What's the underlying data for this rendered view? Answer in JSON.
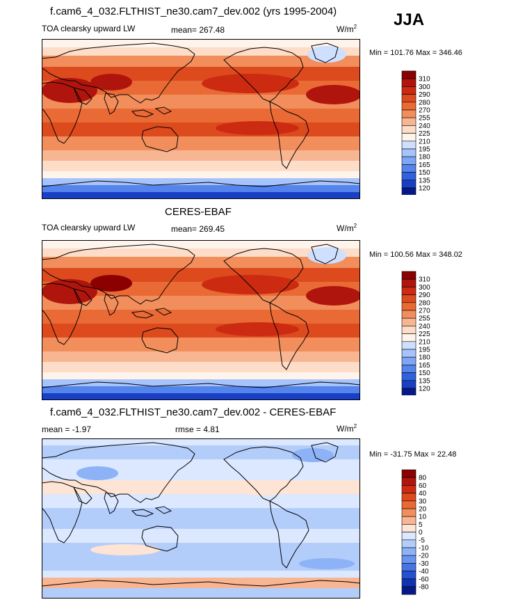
{
  "season": "JJA",
  "panels": [
    {
      "title": "f.cam6_4_032.FLTHIST_ne30.cam7_dev.002 (yrs 1995-2004)",
      "left_label": "TOA clearsky upward LW",
      "center_label": "mean= 267.48",
      "units_main": "W/m",
      "units_sup": "2",
      "minmax": "Min = 101.76 Max = 346.46"
    },
    {
      "title": "CERES-EBAF",
      "left_label": "TOA clearsky upward LW",
      "center_label": "mean= 269.45",
      "units_main": "W/m",
      "units_sup": "2",
      "minmax": "Min = 100.56 Max = 348.02"
    },
    {
      "title": "f.cam6_4_032.FLTHIST_ne30.cam7_dev.002 - CERES-EBAF",
      "left_label": "mean =  -1.97",
      "center_label": "rmse =   4.81",
      "units_main": "W/m",
      "units_sup": "2",
      "minmax": "Min = -31.75 Max =  22.48"
    }
  ],
  "chart_data": [
    {
      "type": "heatmap",
      "title": "f.cam6_4_032.FLTHIST_ne30.cam7_dev.002 (yrs 1995-2004)",
      "variable": "TOA clearsky upward LW",
      "mean": 267.48,
      "min": 101.76,
      "max": 346.46,
      "units": "W/m2",
      "colorbar_levels": [
        "310",
        "300",
        "290",
        "280",
        "270",
        "255",
        "240",
        "225",
        "210",
        "195",
        "180",
        "165",
        "150",
        "135",
        "120"
      ],
      "colorbar_colors": [
        "#8b0000",
        "#b0150d",
        "#cc2b12",
        "#dd4a1e",
        "#ea6a35",
        "#f28e5c",
        "#f8b592",
        "#fddcc8",
        "#fff4ec",
        "#cfe0ff",
        "#a6c4fb",
        "#7ea6f5",
        "#5584ec",
        "#2f62dd",
        "#1940c4",
        "#051a86"
      ]
    },
    {
      "type": "heatmap",
      "title": "CERES-EBAF",
      "variable": "TOA clearsky upward LW",
      "mean": 269.45,
      "min": 100.56,
      "max": 348.02,
      "units": "W/m2",
      "colorbar_levels": [
        "310",
        "300",
        "290",
        "280",
        "270",
        "255",
        "240",
        "225",
        "210",
        "195",
        "180",
        "165",
        "150",
        "135",
        "120"
      ],
      "colorbar_colors": [
        "#8b0000",
        "#b0150d",
        "#cc2b12",
        "#dd4a1e",
        "#ea6a35",
        "#f28e5c",
        "#f8b592",
        "#fddcc8",
        "#fff4ec",
        "#cfe0ff",
        "#a6c4fb",
        "#7ea6f5",
        "#5584ec",
        "#2f62dd",
        "#1940c4",
        "#051a86"
      ]
    },
    {
      "type": "heatmap",
      "title": "f.cam6_4_032.FLTHIST_ne30.cam7_dev.002 - CERES-EBAF",
      "variable": "difference",
      "mean": -1.97,
      "rmse": 4.81,
      "min": -31.75,
      "max": 22.48,
      "units": "W/m2",
      "colorbar_levels": [
        "80",
        "60",
        "40",
        "30",
        "20",
        "10",
        "5",
        "0",
        "-5",
        "-10",
        "-20",
        "-30",
        "-40",
        "-60",
        "-80"
      ],
      "colorbar_colors": [
        "#8b0000",
        "#b0150d",
        "#cc2b12",
        "#dd4a1e",
        "#ea6a35",
        "#f28e5c",
        "#f8b592",
        "#fde4d4",
        "#dbe8ff",
        "#b3cdfb",
        "#8db2f6",
        "#6a95ef",
        "#4774e4",
        "#2550cf",
        "#1033b0",
        "#051a86"
      ]
    }
  ]
}
